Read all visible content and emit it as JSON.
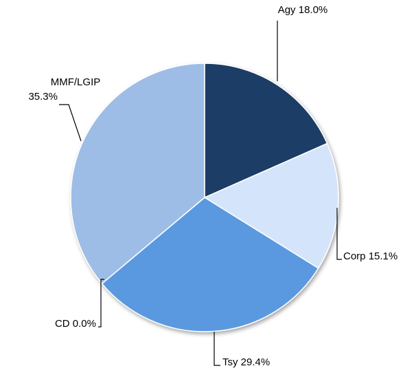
{
  "chart_data": {
    "type": "pie",
    "categories": [
      "Agy",
      "Corp",
      "Tsy",
      "CD",
      "MMF/LGIP"
    ],
    "values": [
      18.0,
      15.1,
      29.4,
      0.0,
      35.3
    ],
    "value_labels": [
      "18.0%",
      "15.1%",
      "29.4%",
      "0.0%",
      "35.3%"
    ],
    "colors": [
      "#1f3e66",
      "#d4e5fb",
      "#5a99e0",
      "#3d6fb0",
      "#9ebde6"
    ]
  }
}
